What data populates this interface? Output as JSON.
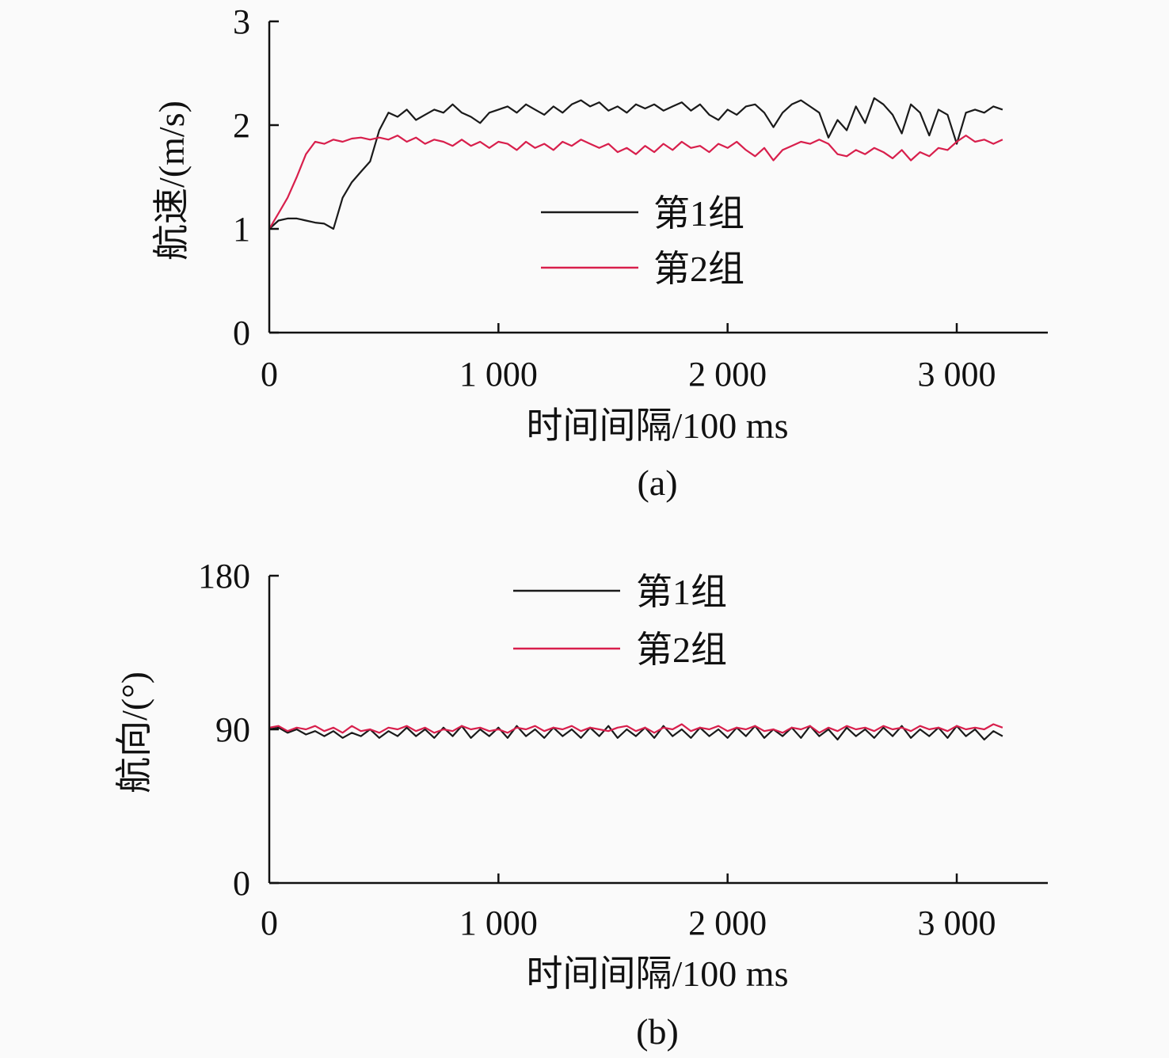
{
  "colors": {
    "group1": "#1a1a1a",
    "group2": "#d81f4c",
    "axis": "#111111"
  },
  "chart_data": [
    {
      "type": "line",
      "panel_label": "(a)",
      "xlabel": "时间间隔/100 ms",
      "ylabel": "航速/(m/s)",
      "xlim": [
        0,
        3400
      ],
      "ylim": [
        0,
        3
      ],
      "xticks": [
        0,
        1000,
        2000,
        3000
      ],
      "xtick_labels": [
        "0",
        "1 000",
        "2 000",
        "3 000"
      ],
      "yticks": [
        0,
        1,
        2,
        3
      ],
      "ytick_labels": [
        "0",
        "1",
        "2",
        "3"
      ],
      "grid": false,
      "legend_position": "center-right",
      "x_start": 0,
      "x_step": 40,
      "series": [
        {
          "name": "第1组",
          "values": [
            1.0,
            1.08,
            1.1,
            1.1,
            1.08,
            1.06,
            1.05,
            1.0,
            1.3,
            1.45,
            1.55,
            1.65,
            1.95,
            2.12,
            2.08,
            2.15,
            2.05,
            2.1,
            2.15,
            2.12,
            2.2,
            2.12,
            2.08,
            2.02,
            2.12,
            2.15,
            2.18,
            2.12,
            2.2,
            2.15,
            2.1,
            2.18,
            2.12,
            2.2,
            2.24,
            2.18,
            2.22,
            2.14,
            2.18,
            2.12,
            2.2,
            2.16,
            2.2,
            2.14,
            2.18,
            2.22,
            2.14,
            2.2,
            2.1,
            2.05,
            2.15,
            2.1,
            2.18,
            2.2,
            2.12,
            1.98,
            2.12,
            2.2,
            2.24,
            2.18,
            2.12,
            1.88,
            2.05,
            1.95,
            2.18,
            2.02,
            2.26,
            2.2,
            2.1,
            1.92,
            2.2,
            2.12,
            1.9,
            2.15,
            2.1,
            1.82,
            2.12,
            2.15,
            2.12,
            2.18,
            2.15
          ]
        },
        {
          "name": "第2组",
          "values": [
            1.0,
            1.15,
            1.3,
            1.5,
            1.72,
            1.84,
            1.82,
            1.86,
            1.84,
            1.87,
            1.88,
            1.86,
            1.88,
            1.86,
            1.9,
            1.84,
            1.88,
            1.82,
            1.86,
            1.84,
            1.8,
            1.86,
            1.8,
            1.84,
            1.78,
            1.84,
            1.82,
            1.76,
            1.84,
            1.78,
            1.82,
            1.76,
            1.84,
            1.8,
            1.86,
            1.82,
            1.78,
            1.82,
            1.74,
            1.78,
            1.72,
            1.8,
            1.74,
            1.82,
            1.76,
            1.84,
            1.78,
            1.8,
            1.74,
            1.82,
            1.78,
            1.84,
            1.76,
            1.7,
            1.78,
            1.66,
            1.76,
            1.8,
            1.84,
            1.82,
            1.86,
            1.82,
            1.72,
            1.7,
            1.76,
            1.72,
            1.78,
            1.74,
            1.68,
            1.76,
            1.66,
            1.74,
            1.7,
            1.78,
            1.76,
            1.84,
            1.9,
            1.84,
            1.86,
            1.82,
            1.86
          ]
        }
      ]
    },
    {
      "type": "line",
      "panel_label": "(b)",
      "xlabel": "时间间隔/100 ms",
      "ylabel": "航向/(°)",
      "xlim": [
        0,
        3400
      ],
      "ylim": [
        0,
        180
      ],
      "xticks": [
        0,
        1000,
        2000,
        3000
      ],
      "xtick_labels": [
        "0",
        "1 000",
        "2 000",
        "3 000"
      ],
      "yticks": [
        0,
        90,
        180
      ],
      "ytick_labels": [
        "0",
        "90",
        "180"
      ],
      "grid": false,
      "legend_position": "top-center",
      "x_start": 0,
      "x_step": 40,
      "series": [
        {
          "name": "第1组",
          "values": [
            90,
            91,
            88,
            90,
            87,
            89,
            86,
            89,
            85,
            88,
            86,
            90,
            85,
            89,
            86,
            91,
            86,
            90,
            85,
            91,
            86,
            92,
            85,
            90,
            86,
            91,
            85,
            92,
            86,
            90,
            85,
            91,
            86,
            90,
            85,
            91,
            86,
            92,
            85,
            90,
            86,
            91,
            85,
            92,
            86,
            90,
            85,
            91,
            86,
            90,
            85,
            91,
            86,
            92,
            85,
            90,
            86,
            91,
            85,
            92,
            86,
            90,
            84,
            91,
            86,
            90,
            85,
            91,
            86,
            92,
            85,
            90,
            86,
            91,
            85,
            92,
            86,
            90,
            84,
            89,
            86
          ]
        },
        {
          "name": "第2组",
          "values": [
            91,
            92,
            89,
            91,
            90,
            92,
            89,
            91,
            88,
            92,
            89,
            90,
            88,
            91,
            90,
            92,
            89,
            91,
            88,
            90,
            89,
            92,
            90,
            91,
            89,
            90,
            88,
            91,
            90,
            92,
            89,
            91,
            90,
            92,
            89,
            91,
            90,
            89,
            91,
            92,
            89,
            91,
            88,
            91,
            90,
            93,
            89,
            91,
            90,
            92,
            89,
            91,
            90,
            92,
            89,
            90,
            88,
            91,
            90,
            92,
            88,
            91,
            89,
            92,
            90,
            91,
            89,
            92,
            90,
            91,
            89,
            92,
            90,
            91,
            89,
            92,
            90,
            91,
            90,
            93,
            91
          ]
        }
      ]
    }
  ]
}
